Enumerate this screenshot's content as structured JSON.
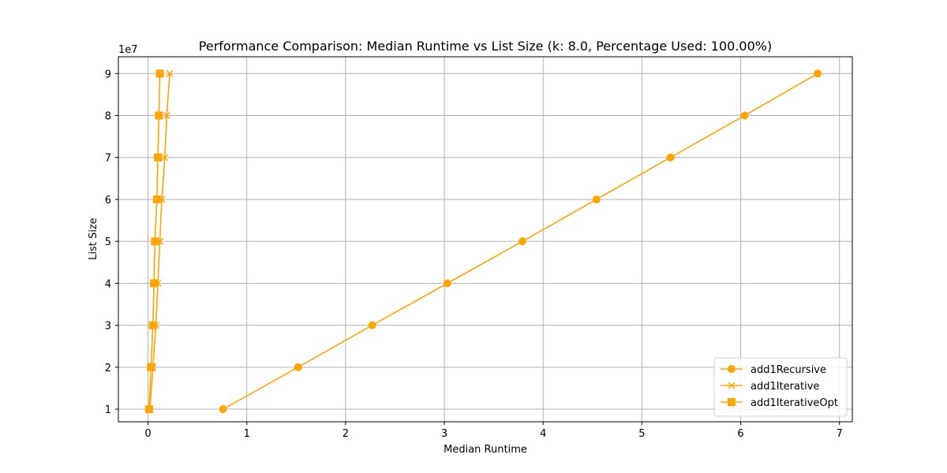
{
  "chart_data": {
    "type": "line",
    "title": "Performance Comparison: Median Runtime vs List Size (k: 8.0, Percentage Used: 100.00%)",
    "xlabel": "Median Runtime",
    "ylabel": "List Size",
    "y_offset_text": "1e7",
    "xlim": [
      -0.3,
      7.13
    ],
    "ylim": [
      7000000,
      94000000
    ],
    "x_ticks": [
      0,
      1,
      2,
      3,
      4,
      5,
      6,
      7
    ],
    "y_ticks": [
      10000000,
      20000000,
      30000000,
      40000000,
      50000000,
      60000000,
      70000000,
      80000000,
      90000000
    ],
    "y_tick_labels": [
      "1",
      "2",
      "3",
      "4",
      "5",
      "6",
      "7",
      "8",
      "9"
    ],
    "grid": true,
    "legend_position": "lower-right",
    "series": [
      {
        "name": "add1Recursive",
        "marker": "circle",
        "color": "#ffa500",
        "points": [
          [
            0.76,
            10000000
          ],
          [
            1.52,
            20000000
          ],
          [
            2.27,
            30000000
          ],
          [
            3.03,
            40000000
          ],
          [
            3.79,
            50000000
          ],
          [
            4.54,
            60000000
          ],
          [
            5.29,
            70000000
          ],
          [
            6.04,
            80000000
          ],
          [
            6.78,
            90000000
          ]
        ]
      },
      {
        "name": "add1Iterative",
        "marker": "x",
        "color": "#ffa500",
        "points": [
          [
            0.02,
            10000000
          ],
          [
            0.05,
            20000000
          ],
          [
            0.08,
            30000000
          ],
          [
            0.1,
            40000000
          ],
          [
            0.12,
            50000000
          ],
          [
            0.14,
            60000000
          ],
          [
            0.17,
            70000000
          ],
          [
            0.19,
            80000000
          ],
          [
            0.22,
            90000000
          ]
        ]
      },
      {
        "name": "add1IterativeOpt",
        "marker": "square",
        "color": "#ffa500",
        "points": [
          [
            0.01,
            10000000
          ],
          [
            0.03,
            20000000
          ],
          [
            0.05,
            30000000
          ],
          [
            0.06,
            40000000
          ],
          [
            0.07,
            50000000
          ],
          [
            0.09,
            60000000
          ],
          [
            0.1,
            70000000
          ],
          [
            0.11,
            80000000
          ],
          [
            0.12,
            90000000
          ]
        ]
      }
    ]
  }
}
